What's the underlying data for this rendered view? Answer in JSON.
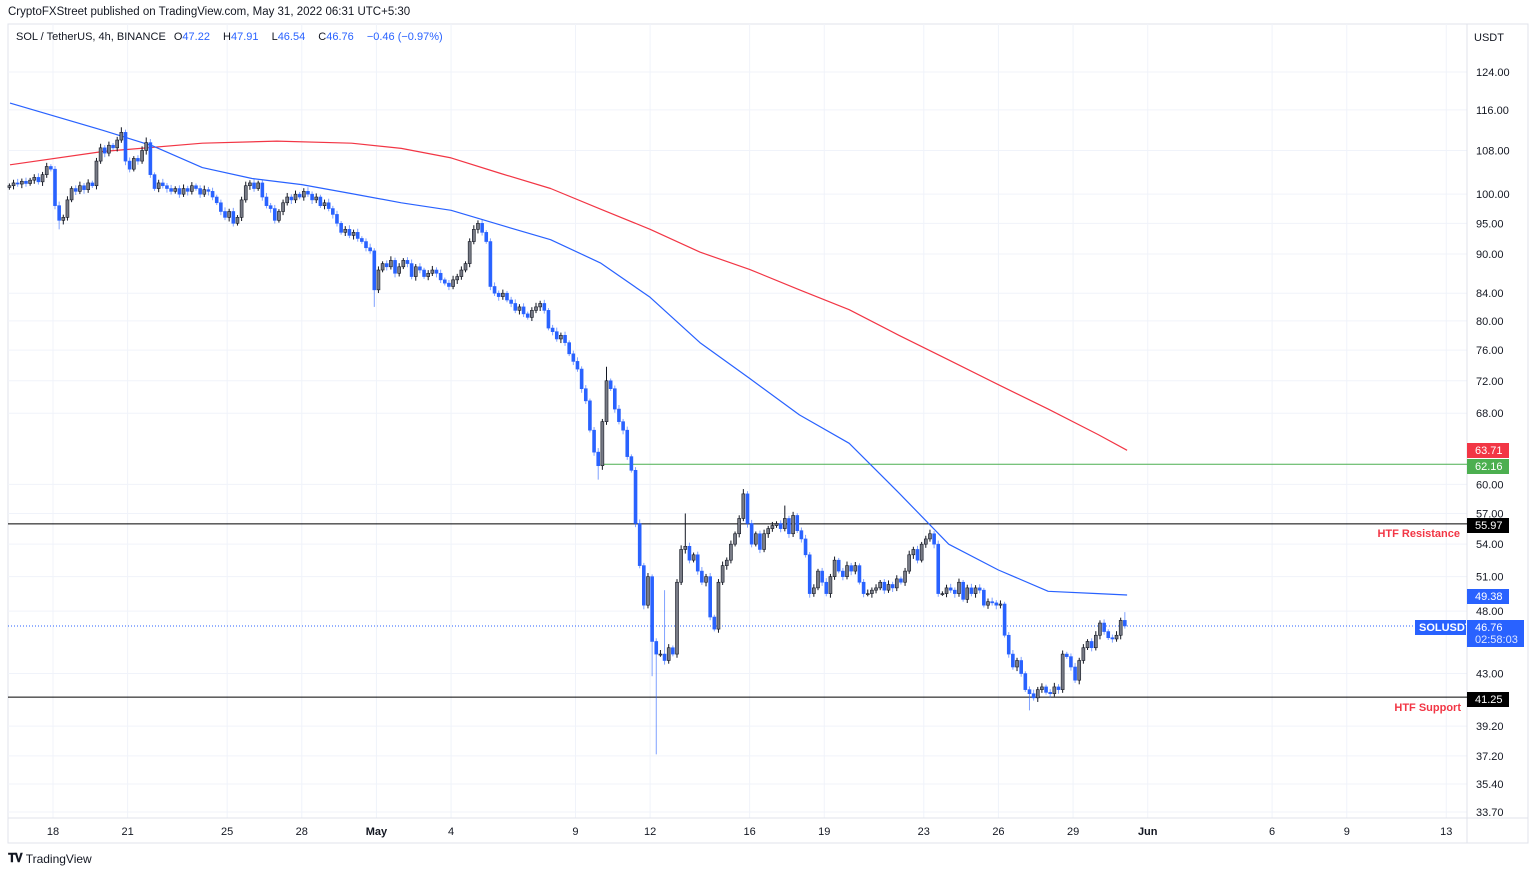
{
  "header": {
    "published": "CryptoFXStreet published on TradingView.com, May 31, 2022 06:31 UTC+5:30"
  },
  "legend": {
    "symbol": "SOL / TetherUS, 4h, BINANCE",
    "o_label": "O",
    "o": "47.22",
    "h_label": "H",
    "h": "47.91",
    "l_label": "L",
    "l": "46.54",
    "c_label": "C",
    "c": "46.76",
    "change": "−0.46 (−0.97%)"
  },
  "footer": {
    "brand": "TradingView",
    "logo": "17"
  },
  "chart_data": {
    "type": "candlestick",
    "title": "",
    "price_axis": {
      "unit": "USDT",
      "scale": "log",
      "range": [
        33.7,
        124.0
      ],
      "ticks": [
        "124.00",
        "116.00",
        "108.00",
        "100.00",
        "95.00",
        "90.00",
        "84.00",
        "80.00",
        "76.00",
        "72.00",
        "68.00",
        "60.00",
        "57.00",
        "54.00",
        "51.00",
        "48.00",
        "43.00",
        "39.20",
        "37.20",
        "35.40",
        "33.70"
      ]
    },
    "time_axis": {
      "ticks": [
        {
          "label": "18",
          "date": "2022-04-18"
        },
        {
          "label": "21",
          "date": "2022-04-21"
        },
        {
          "label": "25",
          "date": "2022-04-25"
        },
        {
          "label": "28",
          "date": "2022-04-28"
        },
        {
          "label": "May",
          "date": "2022-05-01"
        },
        {
          "label": "4",
          "date": "2022-05-04"
        },
        {
          "label": "9",
          "date": "2022-05-09"
        },
        {
          "label": "12",
          "date": "2022-05-12"
        },
        {
          "label": "16",
          "date": "2022-05-16"
        },
        {
          "label": "19",
          "date": "2022-05-19"
        },
        {
          "label": "23",
          "date": "2022-05-23"
        },
        {
          "label": "26",
          "date": "2022-05-26"
        },
        {
          "label": "29",
          "date": "2022-05-29"
        },
        {
          "label": "Jun",
          "date": "2022-06-01"
        },
        {
          "label": "6",
          "date": "2022-06-06"
        },
        {
          "label": "9",
          "date": "2022-06-09"
        },
        {
          "label": "13",
          "date": "2022-06-13"
        }
      ]
    },
    "grid": true,
    "colors": {
      "up": "#787b86",
      "down": "#2962ff",
      "ma_fast": "#2962ff",
      "ma_slow": "#f23645",
      "resistance": "#000000",
      "support": "#000000",
      "level": "#4caf50",
      "annotation": "#f23645"
    },
    "candles": {
      "interval": "4h",
      "first_candle": "2022-04-16 04:00",
      "days": [
        {
          "date": "2022-04-16",
          "closes": [
            101.5,
            102.0,
            101.8,
            102.3,
            101.9
          ]
        },
        {
          "date": "2022-04-17",
          "closes": [
            102.5,
            103.0,
            102.2,
            103.5,
            105.0,
            104.5
          ]
        },
        {
          "date": "2022-04-18",
          "closes": [
            98.0,
            95.5,
            96.0,
            99.0,
            101.0,
            100.5
          ]
        },
        {
          "date": "2022-04-19",
          "closes": [
            101.5,
            100.8,
            102.0,
            101.5,
            106.0,
            108.5
          ]
        },
        {
          "date": "2022-04-20",
          "closes": [
            107.5,
            109.0,
            108.5,
            110.0,
            111.5,
            106.0
          ]
        },
        {
          "date": "2022-04-21",
          "closes": [
            104.5,
            106.5,
            106.0,
            108.0,
            109.5,
            103.5
          ]
        },
        {
          "date": "2022-04-22",
          "closes": [
            101.0,
            102.0,
            101.5,
            101.0,
            100.5,
            101.0
          ]
        },
        {
          "date": "2022-04-23",
          "closes": [
            100.0,
            101.0,
            100.5,
            101.5,
            101.0,
            100.0
          ]
        },
        {
          "date": "2022-04-24",
          "closes": [
            100.8,
            100.5,
            99.5,
            98.5,
            97.0,
            96.0
          ]
        },
        {
          "date": "2022-04-25",
          "closes": [
            97.0,
            95.0,
            96.0,
            99.0,
            101.5,
            102.0
          ]
        },
        {
          "date": "2022-04-26",
          "closes": [
            101.0,
            102.0,
            99.5,
            98.0,
            97.5,
            95.5
          ]
        },
        {
          "date": "2022-04-27",
          "closes": [
            97.0,
            98.5,
            99.5,
            99.0,
            100.0,
            99.5
          ]
        },
        {
          "date": "2022-04-28",
          "closes": [
            100.5,
            100.0,
            99.0,
            99.5,
            98.0,
            98.5
          ]
        },
        {
          "date": "2022-04-29",
          "closes": [
            97.5,
            96.5,
            95.0,
            93.5,
            94.0,
            93.0
          ]
        },
        {
          "date": "2022-04-30",
          "closes": [
            93.5,
            92.5,
            92.0,
            91.0,
            90.5,
            84.5
          ]
        },
        {
          "date": "2022-05-01",
          "closes": [
            87.5,
            88.5,
            88.0,
            89.0,
            87.0,
            88.0
          ]
        },
        {
          "date": "2022-05-02",
          "closes": [
            89.0,
            88.5,
            86.5,
            88.0,
            87.5,
            86.5
          ]
        },
        {
          "date": "2022-05-03",
          "closes": [
            87.0,
            87.5,
            87.0,
            86.0,
            85.5,
            85.0
          ]
        },
        {
          "date": "2022-05-04",
          "closes": [
            86.0,
            86.5,
            87.5,
            88.5,
            92.0,
            94.0
          ]
        },
        {
          "date": "2022-05-05",
          "closes": [
            95.0,
            93.5,
            92.0,
            85.0,
            84.0,
            83.5
          ]
        },
        {
          "date": "2022-05-06",
          "closes": [
            84.0,
            83.0,
            82.5,
            81.5,
            82.0,
            81.0
          ]
        },
        {
          "date": "2022-05-07",
          "closes": [
            80.5,
            81.5,
            82.0,
            82.5,
            81.5,
            79.0
          ]
        },
        {
          "date": "2022-05-08",
          "closes": [
            78.5,
            77.5,
            78.0,
            77.0,
            75.5,
            74.5
          ]
        },
        {
          "date": "2022-05-09",
          "closes": [
            73.5,
            71.0,
            69.5,
            66.0,
            63.5,
            62.0
          ]
        },
        {
          "date": "2022-05-10",
          "closes": [
            67.0,
            72.0,
            71.0,
            68.5,
            67.0,
            66.0
          ]
        },
        {
          "date": "2022-05-11",
          "closes": [
            63.0,
            61.5,
            56.0,
            52.0,
            48.5,
            51.0
          ]
        },
        {
          "date": "2022-05-12",
          "closes": [
            45.5,
            44.5,
            44.5,
            44.0,
            45.0,
            44.5
          ]
        },
        {
          "date": "2022-05-13",
          "closes": [
            50.5,
            53.5,
            53.8,
            52.5,
            53.0,
            51.5
          ]
        },
        {
          "date": "2022-05-14",
          "closes": [
            50.5,
            51.0,
            47.5,
            46.5,
            50.5,
            52.0
          ]
        },
        {
          "date": "2022-05-15",
          "closes": [
            52.5,
            54.0,
            55.0,
            56.5,
            59.0,
            56.0
          ]
        },
        {
          "date": "2022-05-16",
          "closes": [
            54.0,
            55.0,
            53.5,
            55.0,
            55.5,
            55.8
          ]
        },
        {
          "date": "2022-05-17",
          "closes": [
            56.0,
            55.5,
            56.5,
            55.0,
            56.8,
            55.3
          ]
        },
        {
          "date": "2022-05-18",
          "closes": [
            54.5,
            53.0,
            49.5,
            50.0,
            51.5,
            50.5
          ]
        },
        {
          "date": "2022-05-19",
          "closes": [
            49.5,
            51.0,
            52.5,
            51.5,
            51.0,
            52.0
          ]
        },
        {
          "date": "2022-05-20",
          "closes": [
            51.5,
            52.0,
            50.5,
            49.5,
            49.5,
            49.8
          ]
        },
        {
          "date": "2022-05-21",
          "closes": [
            50.0,
            50.5,
            49.8,
            50.3,
            50.0,
            50.8
          ]
        },
        {
          "date": "2022-05-22",
          "closes": [
            50.5,
            51.5,
            53.0,
            53.5,
            52.5,
            54.0
          ]
        },
        {
          "date": "2022-05-23",
          "closes": [
            54.5,
            55.0,
            54.0,
            49.5,
            49.5,
            50.0
          ]
        },
        {
          "date": "2022-05-24",
          "closes": [
            49.8,
            49.5,
            50.5,
            49.0,
            50.0,
            49.5
          ]
        },
        {
          "date": "2022-05-25",
          "closes": [
            50.0,
            49.8,
            48.5,
            48.8,
            48.7,
            48.5
          ]
        },
        {
          "date": "2022-05-26",
          "closes": [
            48.6,
            46.0,
            44.5,
            43.5,
            44.0,
            43.0
          ]
        },
        {
          "date": "2022-05-27",
          "closes": [
            41.8,
            41.5,
            41.2,
            41.8,
            42.0,
            41.6
          ]
        },
        {
          "date": "2022-05-28",
          "closes": [
            41.5,
            42.0,
            41.8,
            44.5,
            44.3,
            43.5
          ]
        },
        {
          "date": "2022-05-29",
          "closes": [
            42.5,
            44.0,
            45.0,
            45.5,
            45.0,
            46.0
          ]
        },
        {
          "date": "2022-05-30",
          "closes": [
            47.0,
            46.3,
            45.8,
            45.7,
            46.0,
            47.22
          ]
        },
        {
          "date": "2022-05-31",
          "closes": [
            46.76
          ]
        }
      ],
      "wicks": [
        {
          "date": "2022-04-18",
          "index": 1,
          "low": 94.0
        },
        {
          "date": "2022-04-20",
          "index": 4,
          "high": 112.5
        },
        {
          "date": "2022-04-21",
          "index": 4,
          "high": 110.5
        },
        {
          "date": "2022-04-30",
          "index": 5,
          "low": 82.0
        },
        {
          "date": "2022-05-05",
          "index": 0,
          "high": 95.5
        },
        {
          "date": "2022-05-09",
          "index": 5,
          "low": 60.5
        },
        {
          "date": "2022-05-10",
          "index": 1,
          "high": 73.8
        },
        {
          "date": "2022-05-12",
          "index": 0,
          "low": 42.8
        },
        {
          "date": "2022-05-12",
          "index": 1,
          "low": 37.3
        },
        {
          "date": "2022-05-12",
          "index": 3,
          "high": 49.8
        },
        {
          "date": "2022-05-13",
          "index": 2,
          "high": 57.0
        },
        {
          "date": "2022-05-15",
          "index": 4,
          "high": 59.5
        },
        {
          "date": "2022-05-17",
          "index": 2,
          "high": 57.8
        },
        {
          "date": "2022-05-27",
          "index": 1,
          "low": 40.3
        },
        {
          "date": "2022-05-31",
          "index": 0,
          "open": 47.22,
          "high": 47.91,
          "low": 46.54
        }
      ]
    },
    "ma_fast": [
      {
        "date": "2022-04-16",
        "value": 117.4
      },
      {
        "date": "2022-04-20",
        "value": 111.9
      },
      {
        "date": "2022-04-22",
        "value": 108.9
      },
      {
        "date": "2022-04-24",
        "value": 104.8
      },
      {
        "date": "2022-04-26",
        "value": 102.8
      },
      {
        "date": "2022-04-28",
        "value": 101.7
      },
      {
        "date": "2022-04-30",
        "value": 100.1
      },
      {
        "date": "2022-05-02",
        "value": 98.5
      },
      {
        "date": "2022-05-04",
        "value": 97.2
      },
      {
        "date": "2022-05-06",
        "value": 94.7
      },
      {
        "date": "2022-05-08",
        "value": 92.3
      },
      {
        "date": "2022-05-10",
        "value": 88.6
      },
      {
        "date": "2022-05-12",
        "value": 83.4
      },
      {
        "date": "2022-05-14",
        "value": 77.0
      },
      {
        "date": "2022-05-16",
        "value": 72.3
      },
      {
        "date": "2022-05-18",
        "value": 67.8
      },
      {
        "date": "2022-05-20",
        "value": 64.5
      },
      {
        "date": "2022-05-22",
        "value": 59.1
      },
      {
        "date": "2022-05-24",
        "value": 54.0
      },
      {
        "date": "2022-05-26",
        "value": 51.6
      },
      {
        "date": "2022-05-28",
        "value": 49.7
      },
      {
        "date": "2022-05-30",
        "value": 49.5
      },
      {
        "date": "2022-05-31",
        "value": 49.38
      }
    ],
    "ma_slow": [
      {
        "date": "2022-04-16",
        "value": 105.3
      },
      {
        "date": "2022-04-20",
        "value": 107.8
      },
      {
        "date": "2022-04-24",
        "value": 109.4
      },
      {
        "date": "2022-04-27",
        "value": 109.8
      },
      {
        "date": "2022-04-30",
        "value": 109.4
      },
      {
        "date": "2022-05-02",
        "value": 108.4
      },
      {
        "date": "2022-05-04",
        "value": 106.6
      },
      {
        "date": "2022-05-06",
        "value": 103.7
      },
      {
        "date": "2022-05-08",
        "value": 101.0
      },
      {
        "date": "2022-05-10",
        "value": 97.4
      },
      {
        "date": "2022-05-12",
        "value": 94.0
      },
      {
        "date": "2022-05-14",
        "value": 90.3
      },
      {
        "date": "2022-05-16",
        "value": 87.6
      },
      {
        "date": "2022-05-18",
        "value": 84.5
      },
      {
        "date": "2022-05-20",
        "value": 81.6
      },
      {
        "date": "2022-05-22",
        "value": 78.0
      },
      {
        "date": "2022-05-24",
        "value": 74.7
      },
      {
        "date": "2022-05-26",
        "value": 71.5
      },
      {
        "date": "2022-05-28",
        "value": 68.5
      },
      {
        "date": "2022-05-30",
        "value": 65.5
      },
      {
        "date": "2022-05-31",
        "value": 63.71
      }
    ],
    "levels": [
      {
        "name": "HTF Resistance",
        "value": 55.97,
        "label": "55.97",
        "annotation": "HTF Resistance"
      },
      {
        "name": "HTF Support",
        "value": 41.25,
        "label": "41.25",
        "annotation": "HTF Support"
      },
      {
        "name": "level",
        "value": 62.16,
        "label": "62.16",
        "from": "2022-05-10"
      }
    ],
    "badges": {
      "ma_slow": "63.71",
      "ma_fast": "49.38",
      "level": "62.16",
      "resistance": "55.97",
      "support": "41.25"
    },
    "current_price": {
      "symbol": "SOLUSDT",
      "value": 46.76,
      "label": "46.76",
      "countdown": "02:58:03"
    }
  }
}
